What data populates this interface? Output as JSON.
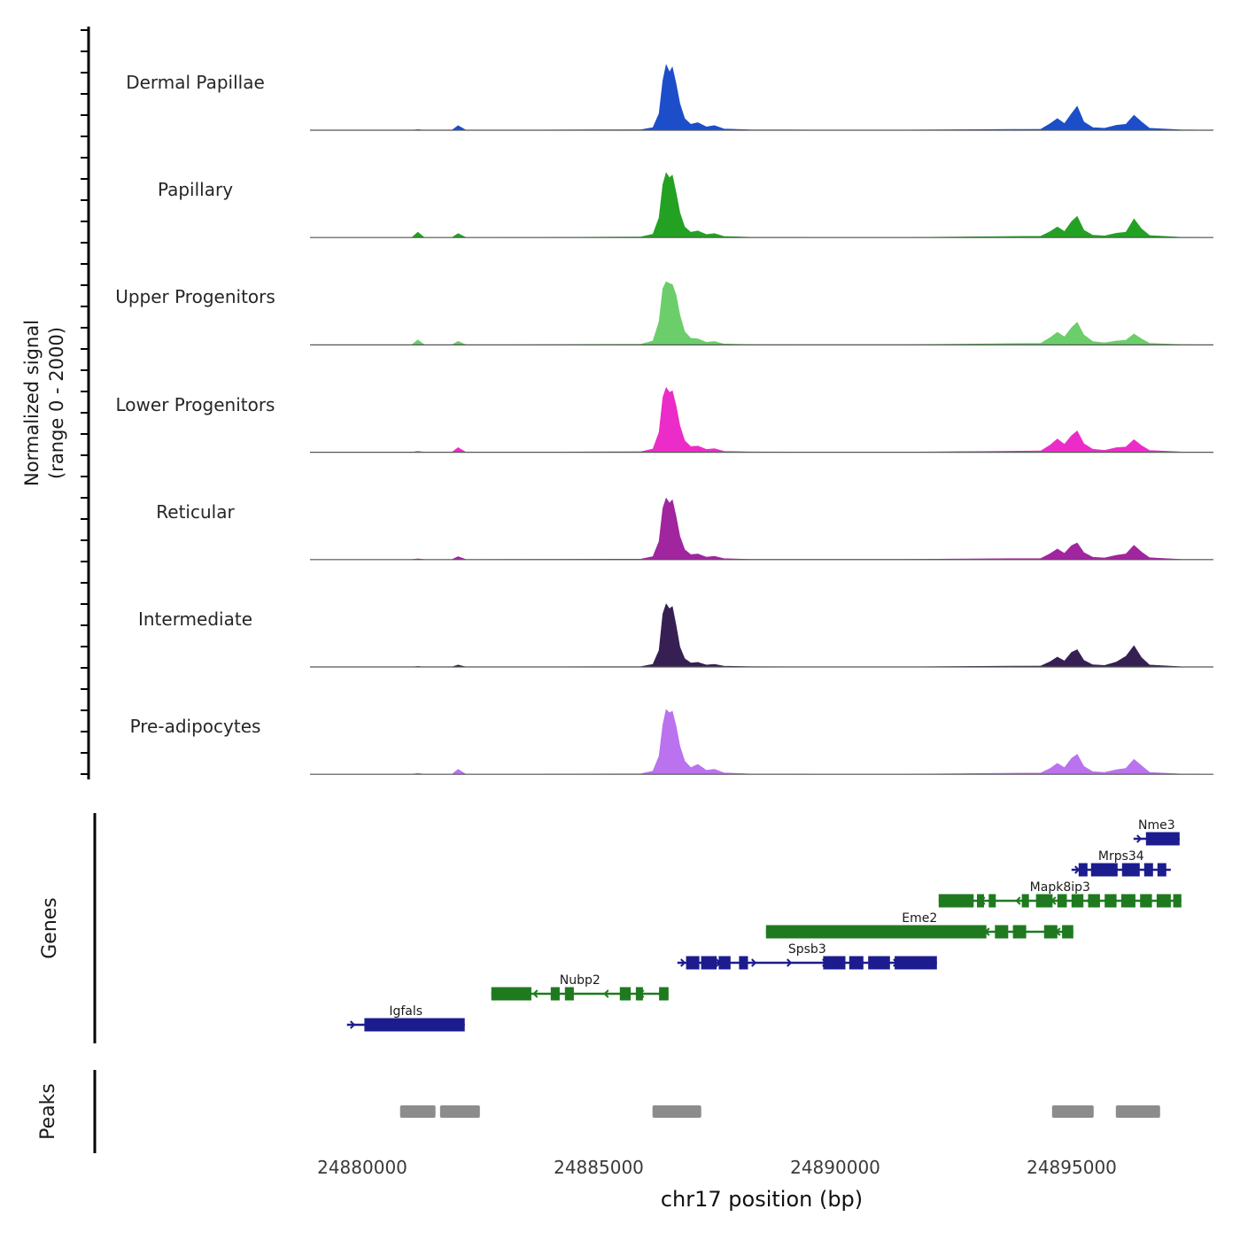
{
  "figure": {
    "ylabel_line1": "Normalized signal",
    "ylabel_line2": "(range 0 - 2000)",
    "genes_section_label": "Genes",
    "peaks_section_label": "Peaks",
    "xlabel": "chr17 position (bp)"
  },
  "chart_data": {
    "type": "area",
    "xlabel": "chr17 position (bp)",
    "ylabel": "Normalized signal (range 0 - 2000)",
    "x_range_bp": [
      24878900,
      24898000
    ],
    "track_y_range": [
      0,
      2000
    ],
    "xtick_positions": [
      24880000,
      24885000,
      24890000,
      24895000
    ],
    "xtick_labels": [
      "24880000",
      "24885000",
      "24890000",
      "24895000"
    ],
    "x": [
      24878900,
      24881050,
      24881180,
      24881320,
      24881900,
      24882030,
      24882200,
      24883800,
      24885900,
      24886150,
      24886280,
      24886360,
      24886430,
      24886500,
      24886560,
      24886640,
      24886720,
      24886820,
      24886950,
      24887100,
      24887280,
      24887450,
      24887650,
      24888200,
      24889500,
      24891500,
      24894350,
      24894550,
      24894700,
      24894850,
      24895000,
      24895120,
      24895260,
      24895450,
      24895700,
      24895950,
      24896150,
      24896320,
      24896480,
      24896650,
      24897300,
      24898000
    ],
    "tracks": [
      {
        "name": "Dermal Papillae",
        "color": "#1d4ec9",
        "values": [
          0,
          0,
          20,
          0,
          0,
          140,
          0,
          5,
          15,
          80,
          500,
          1500,
          1970,
          1750,
          1900,
          1400,
          800,
          350,
          180,
          230,
          100,
          140,
          40,
          10,
          5,
          5,
          30,
          200,
          350,
          200,
          500,
          720,
          250,
          80,
          60,
          150,
          180,
          450,
          250,
          60,
          10,
          0
        ]
      },
      {
        "name": "Papillary",
        "color": "#23a123",
        "values": [
          0,
          0,
          160,
          0,
          0,
          120,
          0,
          5,
          20,
          100,
          600,
          1600,
          1950,
          1800,
          1880,
          1350,
          750,
          320,
          160,
          200,
          90,
          120,
          35,
          10,
          5,
          5,
          40,
          180,
          320,
          180,
          480,
          640,
          220,
          70,
          50,
          130,
          160,
          560,
          260,
          60,
          10,
          0
        ]
      },
      {
        "name": "Upper Progenitors",
        "color": "#6bce6b",
        "values": [
          0,
          0,
          150,
          0,
          0,
          110,
          0,
          5,
          25,
          120,
          700,
          1700,
          1900,
          1850,
          1820,
          1500,
          900,
          400,
          200,
          180,
          80,
          100,
          30,
          10,
          5,
          5,
          50,
          220,
          380,
          240,
          520,
          680,
          300,
          100,
          60,
          120,
          140,
          330,
          180,
          50,
          10,
          0
        ]
      },
      {
        "name": "Lower Progenitors",
        "color": "#ec2cc8",
        "values": [
          0,
          0,
          30,
          0,
          0,
          140,
          0,
          5,
          20,
          100,
          600,
          1650,
          1950,
          1800,
          1850,
          1400,
          800,
          350,
          170,
          190,
          85,
          110,
          30,
          10,
          5,
          5,
          40,
          220,
          400,
          240,
          500,
          640,
          260,
          90,
          60,
          140,
          160,
          380,
          200,
          55,
          10,
          0
        ]
      },
      {
        "name": "Reticular",
        "color": "#a0259e",
        "values": [
          0,
          0,
          25,
          0,
          0,
          90,
          0,
          5,
          15,
          90,
          550,
          1550,
          1850,
          1700,
          1800,
          1300,
          700,
          300,
          150,
          170,
          75,
          100,
          30,
          8,
          4,
          4,
          35,
          180,
          320,
          190,
          420,
          500,
          210,
          70,
          50,
          130,
          170,
          430,
          230,
          55,
          8,
          0
        ]
      },
      {
        "name": "Intermediate",
        "color": "#362053",
        "values": [
          0,
          0,
          15,
          0,
          0,
          60,
          0,
          4,
          12,
          80,
          500,
          1600,
          1900,
          1750,
          1820,
          1250,
          600,
          250,
          120,
          140,
          60,
          80,
          25,
          8,
          4,
          4,
          30,
          160,
          300,
          180,
          440,
          520,
          200,
          65,
          45,
          150,
          320,
          640,
          280,
          60,
          8,
          0
        ]
      },
      {
        "name": "Pre-adipocytes",
        "color": "#bb72ee",
        "values": [
          0,
          0,
          30,
          0,
          0,
          150,
          0,
          5,
          20,
          100,
          550,
          1500,
          1950,
          1850,
          1900,
          1450,
          850,
          400,
          200,
          300,
          120,
          150,
          45,
          12,
          5,
          5,
          40,
          180,
          330,
          200,
          480,
          600,
          240,
          80,
          55,
          140,
          180,
          450,
          260,
          60,
          10,
          0
        ]
      }
    ],
    "genes": [
      {
        "name": "Nme3",
        "color": "#1c1c8f",
        "strand": "+",
        "start": 24896311,
        "end": 24897285,
        "exons": [
          [
            24896573,
            24897285
          ]
        ]
      },
      {
        "name": "Mrps34",
        "color": "#1c1c8f",
        "strand": "+",
        "start": 24895000,
        "end": 24897098,
        "exons": [
          [
            24895150,
            24895337
          ],
          [
            24895412,
            24895974
          ],
          [
            24896068,
            24896442
          ],
          [
            24896536,
            24896723
          ],
          [
            24896817,
            24897004
          ]
        ]
      },
      {
        "name": "Mapk8ip3",
        "color": "#1f7a1f",
        "strand": "-",
        "start": 24892191,
        "end": 24897322,
        "exons": [
          [
            24892191,
            24892930
          ],
          [
            24893000,
            24893150
          ],
          [
            24893250,
            24893400
          ],
          [
            24893950,
            24894100
          ],
          [
            24894250,
            24894600
          ],
          [
            24894700,
            24894900
          ],
          [
            24895000,
            24895250
          ],
          [
            24895350,
            24895600
          ],
          [
            24895700,
            24895950
          ],
          [
            24896050,
            24896350
          ],
          [
            24896450,
            24896700
          ],
          [
            24896800,
            24897100
          ],
          [
            24897150,
            24897322
          ]
        ]
      },
      {
        "name": "Eme2",
        "color": "#1f7a1f",
        "strand": "-",
        "start": 24888540,
        "end": 24895037,
        "exons": [
          [
            24888540,
            24893200
          ],
          [
            24893380,
            24893660
          ],
          [
            24893760,
            24894040
          ],
          [
            24894420,
            24894700
          ],
          [
            24894800,
            24895037
          ]
        ]
      },
      {
        "name": "Spsb3",
        "color": "#1c1c8f",
        "strand": "+",
        "start": 24886667,
        "end": 24892153,
        "exons": [
          [
            24886850,
            24887130
          ],
          [
            24887170,
            24887500
          ],
          [
            24887540,
            24887790
          ],
          [
            24887970,
            24888160
          ],
          [
            24889750,
            24890220
          ],
          [
            24890300,
            24890600
          ],
          [
            24890700,
            24891160
          ],
          [
            24891260,
            24892153
          ]
        ]
      },
      {
        "name": "Nubp2",
        "color": "#1f7a1f",
        "strand": "-",
        "start": 24882734,
        "end": 24886480,
        "exons": [
          [
            24882734,
            24883580
          ],
          [
            24883990,
            24884180
          ],
          [
            24884290,
            24884480
          ],
          [
            24885450,
            24885680
          ],
          [
            24885790,
            24885940
          ],
          [
            24886280,
            24886480
          ]
        ]
      },
      {
        "name": "Igfals",
        "color": "#1c1c8f",
        "strand": "+",
        "start": 24879682,
        "end": 24882172,
        "exons": [
          [
            24880050,
            24882172
          ]
        ]
      }
    ],
    "peaks": [
      [
        24880805,
        24881554
      ],
      [
        24881648,
        24882491
      ],
      [
        24886142,
        24887172
      ],
      [
        24894588,
        24895468
      ],
      [
        24895937,
        24896873
      ]
    ],
    "peak_color": "#8c8c8c"
  }
}
